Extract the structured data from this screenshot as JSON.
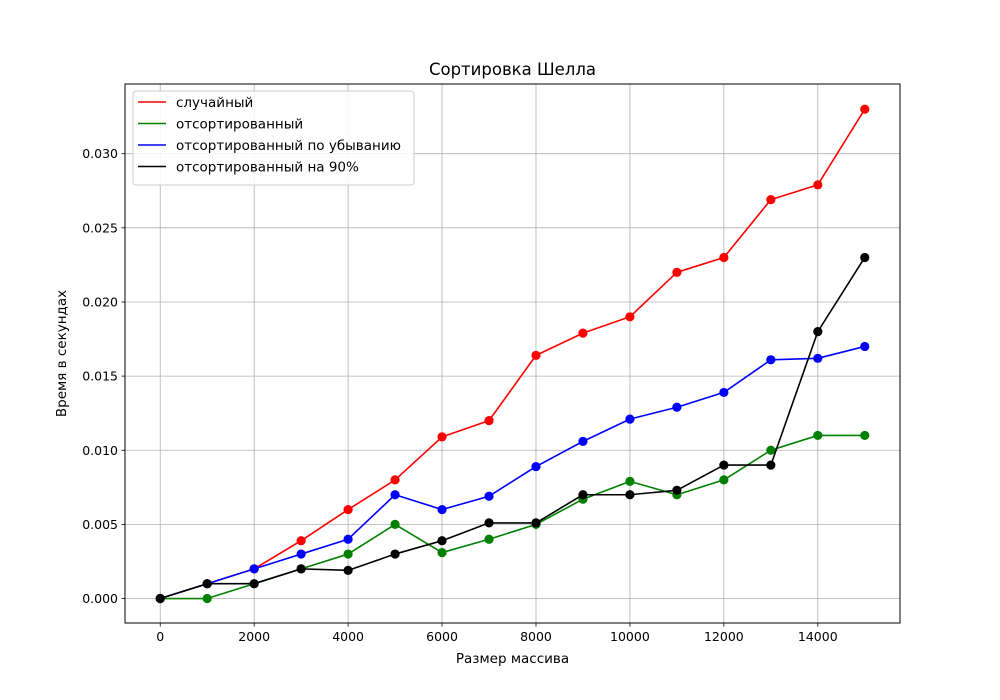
{
  "chart_data": {
    "type": "line",
    "title": "Сортировка Шелла",
    "xlabel": "Размер массива",
    "ylabel": "Время в секундах",
    "xlim": [
      -750,
      15750
    ],
    "ylim": [
      -0.00165,
      0.0347
    ],
    "x_ticks": [
      0,
      2000,
      4000,
      6000,
      8000,
      10000,
      12000,
      14000
    ],
    "x_tick_labels": [
      "0",
      "2000",
      "4000",
      "6000",
      "8000",
      "10000",
      "12000",
      "14000"
    ],
    "y_ticks": [
      0.0,
      0.005,
      0.01,
      0.015,
      0.02,
      0.025,
      0.03
    ],
    "y_tick_labels": [
      "0.000",
      "0.005",
      "0.010",
      "0.015",
      "0.020",
      "0.025",
      "0.030"
    ],
    "grid": true,
    "legend_position": "top-left",
    "x": [
      0,
      1000,
      2000,
      3000,
      4000,
      5000,
      6000,
      7000,
      8000,
      9000,
      10000,
      11000,
      12000,
      13000,
      14000,
      15000
    ],
    "series": [
      {
        "name": "случайный",
        "color": "#ff0000",
        "values": [
          0.0,
          0.001,
          0.002,
          0.0039,
          0.006,
          0.008,
          0.0109,
          0.012,
          0.0164,
          0.0179,
          0.019,
          0.022,
          0.023,
          0.0269,
          0.0279,
          0.033
        ]
      },
      {
        "name": "отсортированный",
        "color": "#008000",
        "values": [
          0.0,
          0.0,
          0.001,
          0.002,
          0.003,
          0.005,
          0.0031,
          0.004,
          0.005,
          0.0067,
          0.0079,
          0.007,
          0.008,
          0.01,
          0.011,
          0.011
        ]
      },
      {
        "name": "отсортированный по убыванию",
        "color": "#0000ff",
        "values": [
          0.0,
          0.001,
          0.002,
          0.003,
          0.004,
          0.007,
          0.006,
          0.0069,
          0.0089,
          0.0106,
          0.0121,
          0.0129,
          0.0139,
          0.0161,
          0.0162,
          0.017
        ]
      },
      {
        "name": "отсортированный на 90%",
        "color": "#000000",
        "values": [
          0.0,
          0.001,
          0.001,
          0.002,
          0.0019,
          0.003,
          0.0039,
          0.0051,
          0.0051,
          0.007,
          0.007,
          0.0073,
          0.009,
          0.009,
          0.018,
          0.023
        ]
      }
    ]
  }
}
